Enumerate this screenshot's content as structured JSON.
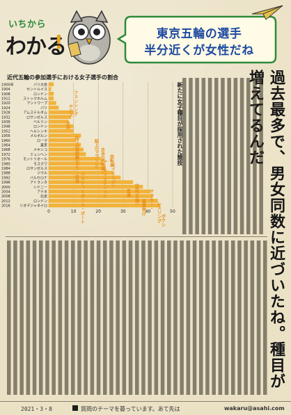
{
  "header": {
    "brand_top": "いちから",
    "brand_main": "わかる",
    "brand_bang": "!",
    "bubble_line1": "東京五輪の選手",
    "bubble_line2": "半分近くが女性だね"
  },
  "article": {
    "headline": "過去最多で、男女同数に近づいたね。種目が増えてるんだ",
    "sub_headline": "新たに女子種目が採用された競技",
    "author": ""
  },
  "footer": {
    "date": "2021・3・8",
    "note": "質問のテーマを募っています。あて先は",
    "email": "wakaru@asahi.com"
  },
  "colors": {
    "bar": "#f2b23a",
    "label": "#e8901a",
    "headline_blue": "#1d4aa1",
    "brand_green": "#2d8a3a"
  },
  "chart_data": {
    "type": "bar",
    "orientation": "horizontal",
    "title": "近代五輪の参加選手における女子選手の割合",
    "x_axis_ticks": [
      0,
      10,
      20,
      30,
      40,
      50
    ],
    "xlim": [
      0,
      50
    ],
    "unit": "%",
    "rows": [
      {
        "year": "1900年",
        "city": "パリ大会",
        "value": 2
      },
      {
        "year": "1904",
        "city": "セントルイス",
        "value": 1
      },
      {
        "year": "1908",
        "city": "ロンドン",
        "value": 2
      },
      {
        "year": "1912",
        "city": "ストックホルム",
        "value": 2
      },
      {
        "year": "1920",
        "city": "アントワープ",
        "value": 3
      },
      {
        "year": "1924",
        "city": "パリ",
        "value": 4
      },
      {
        "year": "1928",
        "city": "アムステルダム",
        "value": 10
      },
      {
        "year": "1932",
        "city": "ロサンゼルス",
        "value": 9
      },
      {
        "year": "1936",
        "city": "ベルリン",
        "value": 8
      },
      {
        "year": "1948",
        "city": "ロンドン",
        "value": 10
      },
      {
        "year": "1952",
        "city": "ヘルシンキ",
        "value": 10
      },
      {
        "year": "1956",
        "city": "メルボルン",
        "value": 13
      },
      {
        "year": "1960",
        "city": "ローマ",
        "value": 11
      },
      {
        "year": "1964",
        "city": "東京",
        "value": 13
      },
      {
        "year": "1968",
        "city": "メキシコ",
        "value": 14
      },
      {
        "year": "1972",
        "city": "ミュンヘン",
        "value": 15
      },
      {
        "year": "1976",
        "city": "モントリオール",
        "value": 21
      },
      {
        "year": "1980",
        "city": "モスクワ",
        "value": 22
      },
      {
        "year": "1984",
        "city": "ロサンゼルス",
        "value": 23
      },
      {
        "year": "1988",
        "city": "ソウル",
        "value": 26
      },
      {
        "year": "1992",
        "city": "バルセロナ",
        "value": 29
      },
      {
        "year": "1996",
        "city": "アトランタ",
        "value": 34
      },
      {
        "year": "2000",
        "city": "シドニー",
        "value": 38
      },
      {
        "year": "2004",
        "city": "アテネ",
        "value": 41
      },
      {
        "year": "2008",
        "city": "北京",
        "value": 42
      },
      {
        "year": "2012",
        "city": "ロンドン",
        "value": 44
      },
      {
        "year": "2016",
        "city": "リオデジャネイロ",
        "value": 45
      }
    ],
    "annotations": [
      {
        "text": "テニス",
        "row": 5
      },
      {
        "text": "水泳",
        "row": 6
      },
      {
        "text": "フェンシング",
        "row": 6
      },
      {
        "text": "陸上(短距離など)・体操",
        "row": 7
      },
      {
        "text": "バスケットボール・ボート",
        "row": 12
      },
      {
        "text": "陸上(マラソン)",
        "row": 9
      },
      {
        "text": "水泳(新体操・",
        "row": 10
      },
      {
        "text": "自転車",
        "row": 11
      },
      {
        "text": "スイミング)",
        "row": 11
      },
      {
        "text": "アーティスティック",
        "row": 10
      },
      {
        "text": "柔道",
        "row": 18
      },
      {
        "text": "(近代五種)",
        "row": 18
      },
      {
        "text": "重量挙げ",
        "row": 19
      },
      {
        "text": "サッカー・",
        "row": 19
      },
      {
        "text": "レスリング",
        "row": 21
      },
      {
        "text": "ボクシング",
        "row": 22
      }
    ]
  }
}
